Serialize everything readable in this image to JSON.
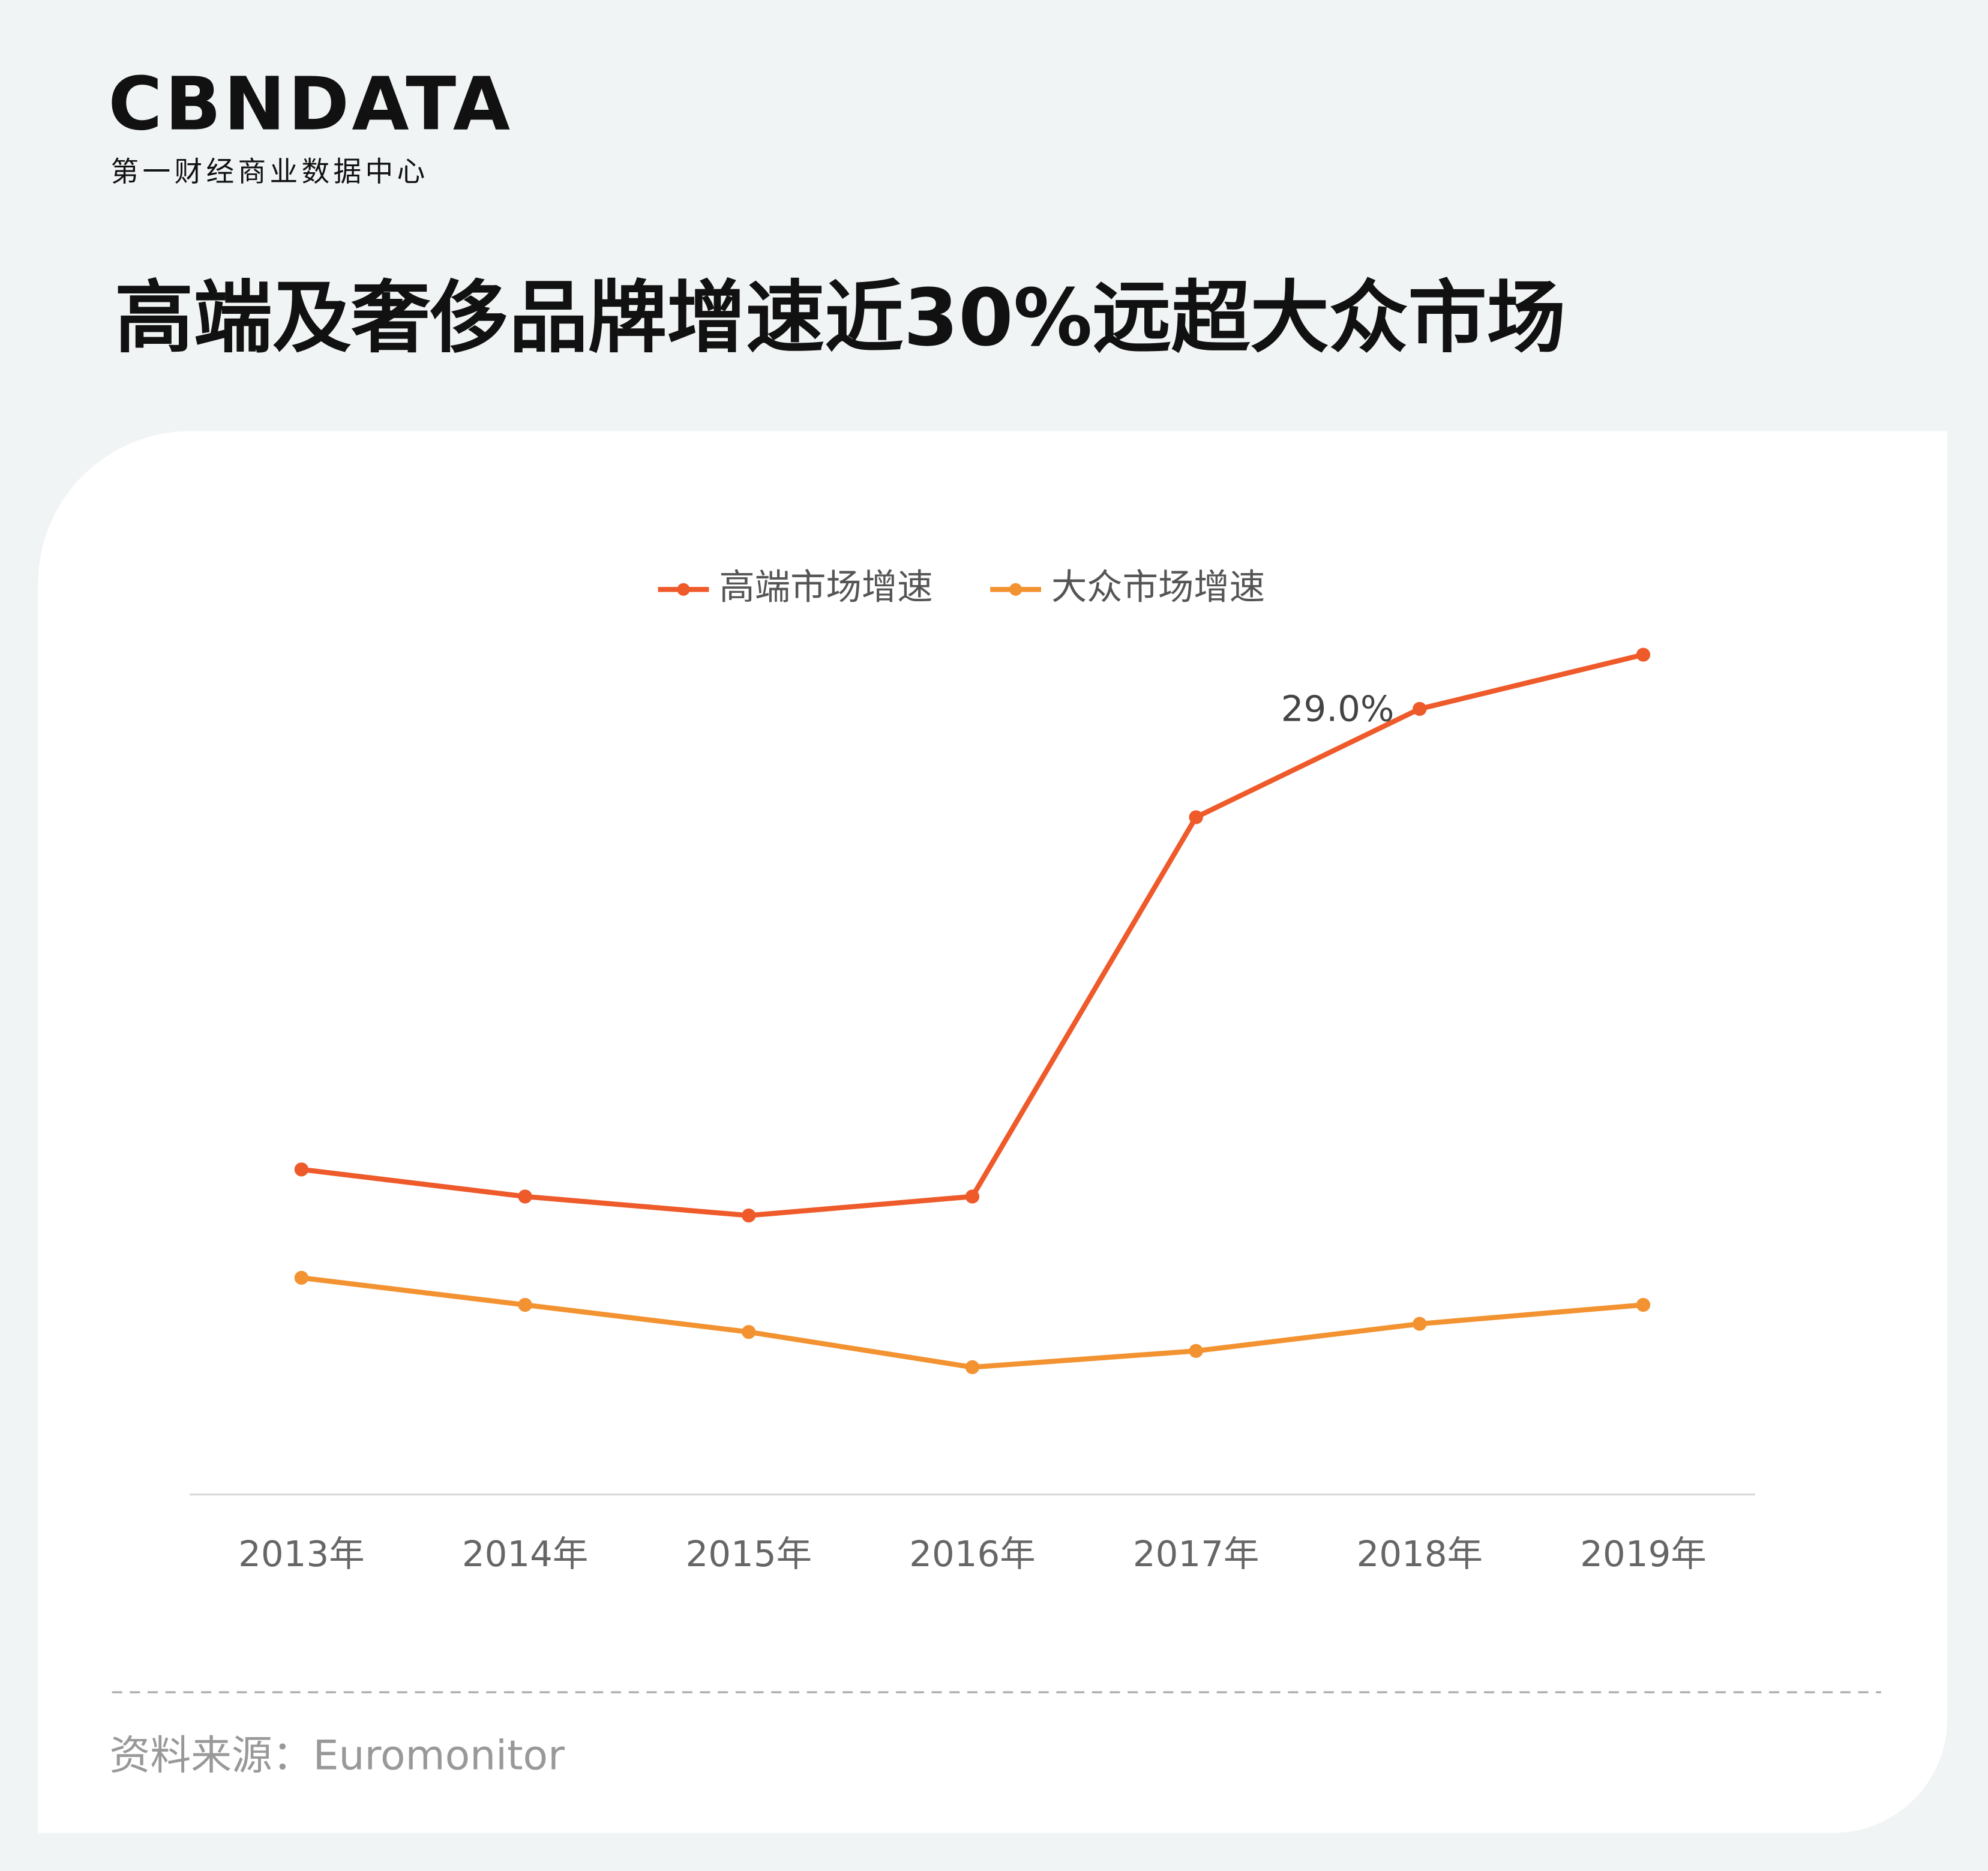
{
  "logo": {
    "name": "CBNDATA",
    "tagline": "第一财经商业数据中心"
  },
  "chart_data": {
    "type": "line",
    "title": "高端及奢侈品牌增速近30%远超大众市场",
    "categories": [
      "2013年",
      "2014年",
      "2015年",
      "2016年",
      "2017年",
      "2018年",
      "2019年"
    ],
    "series": [
      {
        "name": "高端市场增速",
        "color": "#ee5a2a",
        "values": [
          12.0,
          11.0,
          10.3,
          11.0,
          25.0,
          29.0,
          31.0
        ],
        "value_labels": [
          null,
          null,
          null,
          null,
          null,
          "29.0%",
          null
        ]
      },
      {
        "name": "大众市场增速",
        "color": "#f39230",
        "values": [
          8.0,
          7.0,
          6.0,
          4.7,
          5.3,
          6.3,
          7.0
        ]
      }
    ],
    "ylim": [
      0,
      35
    ],
    "legend": "top"
  },
  "source": "资料来源：Euromonitor"
}
